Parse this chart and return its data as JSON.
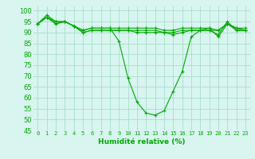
{
  "xlabel": "Humidité relative (%)",
  "ylabel": "",
  "bg_color": "#d8f5f0",
  "grid_color": "#aaddcc",
  "line_color": "#00aa00",
  "xlim": [
    -0.5,
    23.5
  ],
  "ylim": [
    45,
    102
  ],
  "yticks": [
    45,
    50,
    55,
    60,
    65,
    70,
    75,
    80,
    85,
    90,
    95,
    100
  ],
  "xticks": [
    0,
    1,
    2,
    3,
    4,
    5,
    6,
    7,
    8,
    9,
    10,
    11,
    12,
    13,
    14,
    15,
    16,
    17,
    18,
    19,
    20,
    21,
    22,
    23
  ],
  "series": [
    [
      94,
      98,
      95,
      95,
      93,
      91,
      92,
      92,
      92,
      86,
      69,
      58,
      53,
      52,
      54,
      63,
      72,
      88,
      91,
      92,
      88,
      94,
      92,
      91
    ],
    [
      94,
      97,
      94,
      95,
      93,
      90,
      91,
      91,
      91,
      91,
      91,
      91,
      91,
      91,
      90,
      90,
      91,
      91,
      91,
      91,
      91,
      94,
      91,
      91
    ],
    [
      94,
      97,
      95,
      95,
      93,
      91,
      92,
      92,
      92,
      92,
      92,
      92,
      92,
      92,
      91,
      91,
      92,
      92,
      92,
      92,
      91,
      94,
      92,
      92
    ],
    [
      94,
      97,
      94,
      95,
      93,
      90,
      91,
      91,
      91,
      91,
      91,
      90,
      90,
      90,
      90,
      89,
      90,
      91,
      91,
      91,
      89,
      95,
      91,
      91
    ]
  ]
}
